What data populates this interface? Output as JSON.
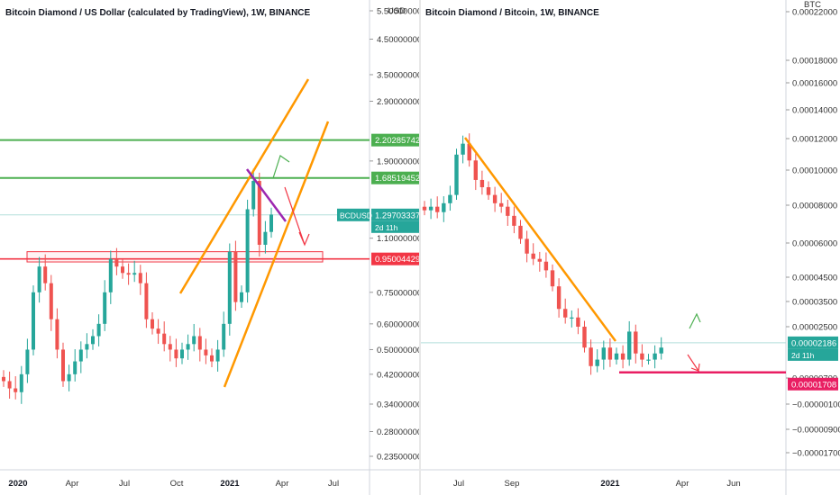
{
  "left_chart": {
    "title": "Bitcoin Diamond / US Dollar (calculated by TradingView), 1W, BINANCE",
    "axis_currency": "USD",
    "y_ticks": [
      "5.50000000",
      "4.50000000",
      "3.50000000",
      "2.90000000",
      "2.20285742",
      "1.90000000",
      "1.68519452",
      "1.10000000",
      "0.95004429",
      "0.75000000",
      "0.60000000",
      "0.50000000",
      "0.42000000",
      "0.34000000",
      "0.28000000",
      "0.23500000"
    ],
    "x_ticks": [
      "2020",
      "Apr",
      "Jul",
      "Oct",
      "2021",
      "Apr",
      "Jul"
    ],
    "price_tags": [
      {
        "label": "2.20285742",
        "color": "#4caf50"
      },
      {
        "label": "1.68519452",
        "color": "#4caf50"
      },
      {
        "label": "1.29703337",
        "color": "#26a69a"
      },
      {
        "label": "0.95004429",
        "color": "#f23645"
      }
    ],
    "symbol_tag": "BCDUSD",
    "countdown": "2d 11h"
  },
  "right_chart": {
    "title": "Bitcoin Diamond / Bitcoin, 1W, BINANCE",
    "axis_currency": "BTC",
    "y_ticks": [
      "0.00022000",
      "0.00018000",
      "0.00016000",
      "0.00014000",
      "0.00012000",
      "0.00010000",
      "0.00008000",
      "0.00006000",
      "0.00004500",
      "0.00003500",
      "0.00002500",
      "0.00000700",
      "−0.00000100",
      "−0.00000900",
      "−0.00001700"
    ],
    "x_ticks": [
      "Jul",
      "Sep",
      "2021",
      "Apr",
      "Jun"
    ],
    "price_tags": [
      {
        "label": "0.00002186",
        "color": "#26a69a"
      },
      {
        "label": "0.00001708",
        "color": "#e91e63"
      }
    ],
    "countdown": "2d 11h"
  },
  "colors": {
    "up": "#26a69a",
    "down": "#ef5350",
    "orange": "#ff9800",
    "green": "#4caf50",
    "red": "#f23645",
    "magenta": "#e91e63",
    "purple": "#9c27b0"
  },
  "chart_data": [
    {
      "type": "candlestick",
      "title": "Bitcoin Diamond / US Dollar (calculated by TradingView), 1W, BINANCE",
      "y_scale": "log",
      "x": [
        "2020",
        "Apr",
        "Jul",
        "Oct",
        "2021",
        "Apr",
        "Jul"
      ],
      "ylim": [
        0.2,
        6.0
      ],
      "horizontal_levels": [
        2.20285742,
        1.68519452,
        0.95004429
      ],
      "last_price": 1.29703337,
      "close_series": [
        0.4,
        0.38,
        0.37,
        0.42,
        0.5,
        0.75,
        0.9,
        0.8,
        0.62,
        0.5,
        0.4,
        0.42,
        0.46,
        0.5,
        0.52,
        0.55,
        0.6,
        0.75,
        0.95,
        0.9,
        0.86,
        0.85,
        0.86,
        0.8,
        0.62,
        0.58,
        0.56,
        0.52,
        0.5,
        0.47,
        0.5,
        0.52,
        0.55,
        0.5,
        0.48,
        0.46,
        0.5,
        0.6,
        1.0,
        0.7,
        0.75,
        1.35,
        1.65,
        1.05,
        1.15,
        1.3
      ]
    },
    {
      "type": "candlestick",
      "title": "Bitcoin Diamond / Bitcoin, 1W, BINANCE",
      "y_scale": "log",
      "x": [
        "Jul",
        "Sep",
        "2021",
        "Apr",
        "Jun"
      ],
      "ylim": [
        1.25e-05,
        0.00024
      ],
      "horizontal_levels": [
        1.708e-05
      ],
      "last_price": 2.186e-05,
      "close_series": [
        6.6e-05,
        6.8e-05,
        6.5e-05,
        7e-05,
        7.5e-05,
        0.000105,
        0.000115,
        0.0001,
        8.5e-05,
        8e-05,
        7.5e-05,
        7e-05,
        6.8e-05,
        6.3e-05,
        5.8e-05,
        5.2e-05,
        4.6e-05,
        4.4e-05,
        4.3e-05,
        4e-05,
        3.5e-05,
        2.9e-05,
        2.7e-05,
        2.7e-05,
        2.5e-05,
        2.1e-05,
        1.8e-05,
        1.9e-05,
        2.1e-05,
        1.9e-05,
        2e-05,
        1.9e-05,
        2.4e-05,
        2e-05,
        1.9e-05,
        1.9e-05,
        2e-05,
        2.1e-05
      ]
    }
  ]
}
